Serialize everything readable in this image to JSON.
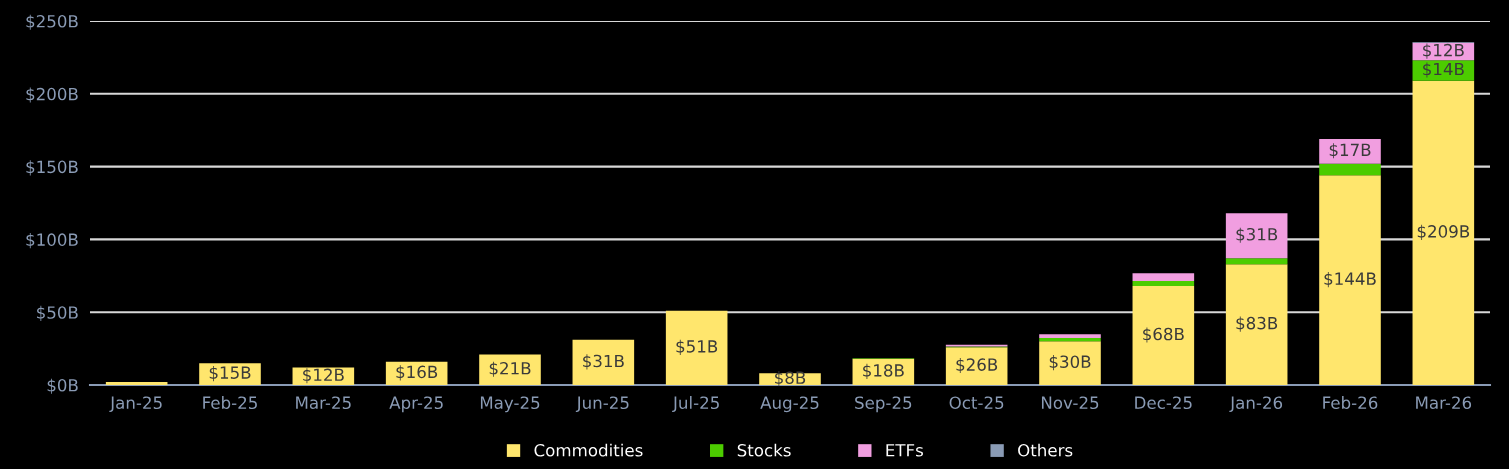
{
  "chart_data": {
    "type": "bar",
    "stacked": true,
    "categories": [
      "Jan-25",
      "Feb-25",
      "Mar-25",
      "Apr-25",
      "May-25",
      "Jun-25",
      "Jul-25",
      "Aug-25",
      "Sep-25",
      "Oct-25",
      "Nov-25",
      "Dec-25",
      "Jan-26",
      "Feb-26",
      "Mar-26"
    ],
    "series": [
      {
        "name": "Commodities",
        "color": "#ffe66d",
        "values": [
          2,
          15,
          12,
          16,
          21,
          31,
          51,
          8,
          18,
          26,
          30,
          68,
          83,
          144,
          209
        ],
        "value_labels": [
          null,
          "$15B",
          "$12B",
          "$16B",
          "$21B",
          "$31B",
          "$51B",
          "$8B",
          "$18B",
          "$26B",
          "$30B",
          "$68B",
          "$83B",
          "$144B",
          "$209B"
        ]
      },
      {
        "name": "Stocks",
        "color": "#4ccc00",
        "values": [
          null,
          null,
          null,
          null,
          null,
          null,
          null,
          null,
          0.3,
          0.5,
          2.2,
          3.5,
          4,
          8,
          14
        ],
        "value_labels": [
          null,
          null,
          null,
          null,
          null,
          null,
          null,
          null,
          null,
          null,
          null,
          null,
          null,
          null,
          "$14B"
        ]
      },
      {
        "name": "ETFs",
        "color": "#f19ee0",
        "values": [
          null,
          null,
          null,
          null,
          null,
          null,
          null,
          null,
          null,
          1.1,
          2.7,
          5.2,
          31,
          17,
          12
        ],
        "value_labels": [
          null,
          null,
          null,
          null,
          null,
          null,
          null,
          null,
          null,
          null,
          null,
          null,
          "$31B",
          "$17B",
          "$12B"
        ]
      },
      {
        "name": "Others",
        "color": "#8a9bb5",
        "values": [
          null,
          null,
          null,
          null,
          null,
          null,
          null,
          null,
          null,
          null,
          null,
          null,
          null,
          null,
          0.5
        ]
      }
    ],
    "ylim": [
      0,
      250
    ],
    "yticks": [
      {
        "value": 0,
        "label": "$0B"
      },
      {
        "value": 50,
        "label": "$50B"
      },
      {
        "value": 100,
        "label": "$100B"
      },
      {
        "value": 150,
        "label": "$150B"
      },
      {
        "value": 200,
        "label": "$200B"
      },
      {
        "value": 250,
        "label": "$250B"
      }
    ],
    "grid": "y",
    "legend": "bottom"
  }
}
